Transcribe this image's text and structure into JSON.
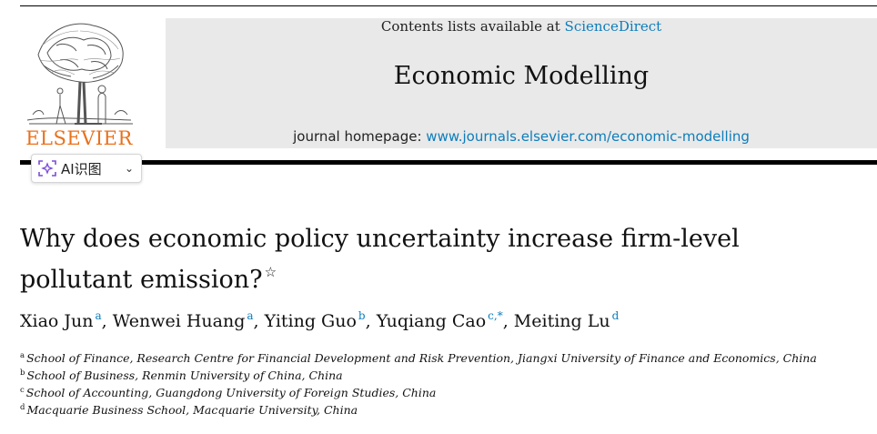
{
  "header": {
    "contents_prefix": "Contents lists available at ",
    "contents_link": "ScienceDirect",
    "journal_title": "Economic Modelling",
    "homepage_prefix": "journal homepage: ",
    "homepage_link": "www.journals.elsevier.com/economic-modelling",
    "publisher_logo_text": "ELSEVIER"
  },
  "toolbar": {
    "ai_button_label": "AI识图",
    "ai_button_icon": "ai-scan-icon",
    "chevron_icon": "chevron-down-icon"
  },
  "article": {
    "title_line1": "Why does economic policy uncertainty increase firm-level",
    "title_line2": "pollutant emission?",
    "title_note_mark": "☆"
  },
  "authors": [
    {
      "name": "Xiao Jun",
      "sup": "a"
    },
    {
      "name": "Wenwei Huang",
      "sup": "a"
    },
    {
      "name": "Yiting Guo",
      "sup": "b"
    },
    {
      "name": "Yuqiang Cao",
      "sup": "c,*"
    },
    {
      "name": "Meiting Lu",
      "sup": "d"
    }
  ],
  "affiliations": [
    {
      "label": "a",
      "text": "School of Finance, Research Centre for Financial Development and Risk Prevention, Jiangxi University of Finance and Economics, China"
    },
    {
      "label": "b",
      "text": "School of Business, Renmin University of China, China"
    },
    {
      "label": "c",
      "text": "School of Accounting, Guangdong University of Foreign Studies, China"
    },
    {
      "label": "d",
      "text": "Macquarie Business School, Macquarie University, China"
    }
  ],
  "colors": {
    "link": "#0c7dbb",
    "elsevier_orange": "#e9711c",
    "header_band": "#e9e9e9"
  }
}
